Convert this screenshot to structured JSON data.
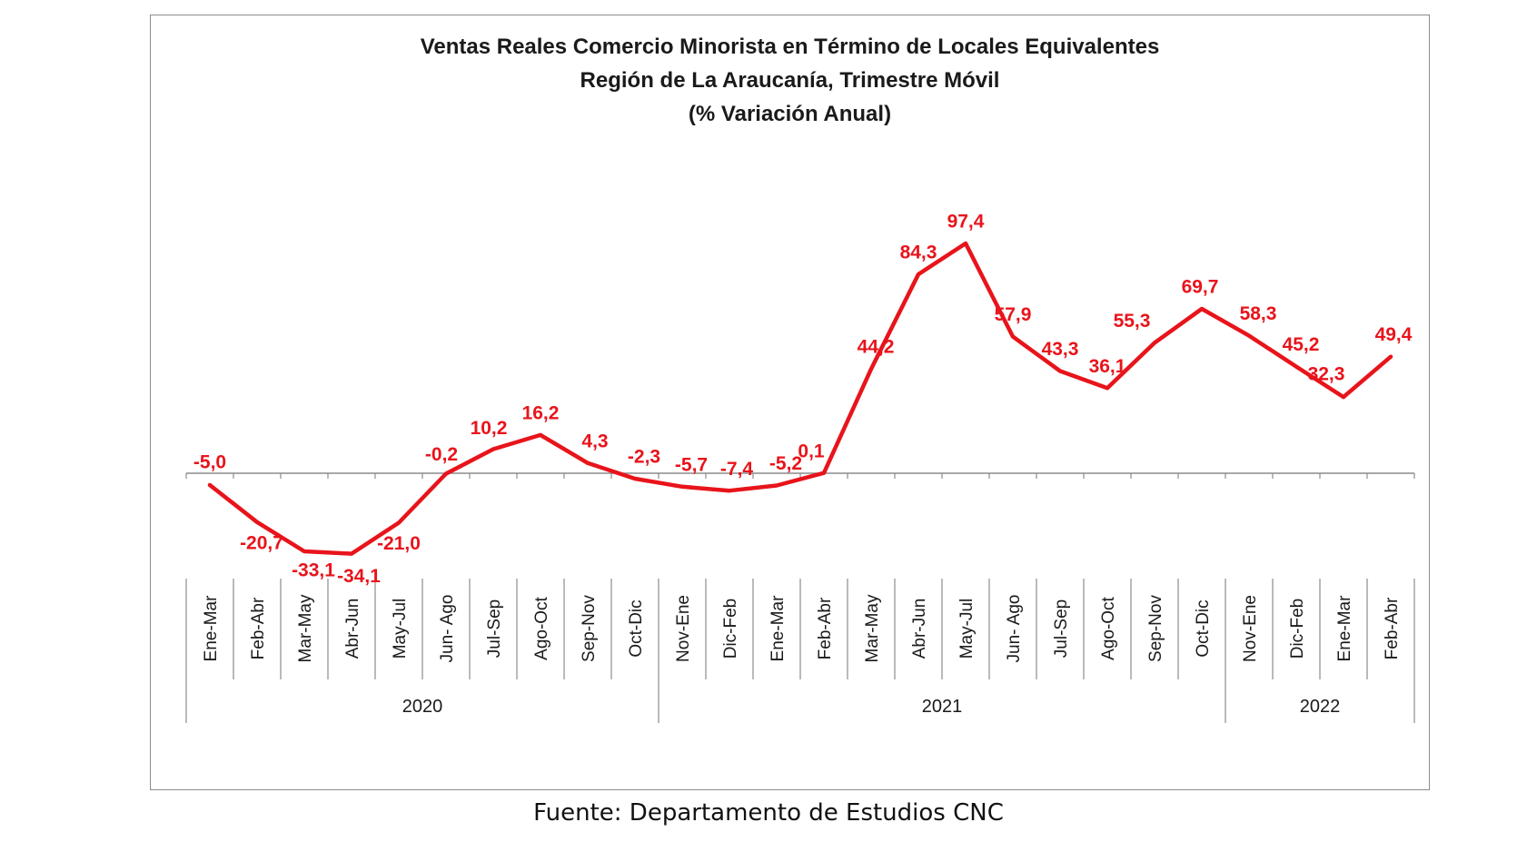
{
  "chart_data": {
    "type": "line",
    "title": "Ventas Reales Comercio Minorista  en Término de Locales Equivalentes",
    "subtitle": "Región de La Araucanía, Trimestre Móvil",
    "subtitle2": "(% Variación Anual)",
    "categories": [
      "Ene-Mar",
      "Feb-Abr",
      "Mar-May",
      "Abr-Jun",
      "May-Jul",
      "Jun- Ago",
      "Jul-Sep",
      "Ago-Oct",
      "Sep-Nov",
      "Oct-Dic",
      "Nov-Ene",
      "Dic-Feb",
      "Ene-Mar",
      "Feb-Abr",
      "Mar-May",
      "Abr-Jun",
      "May-Jul",
      "Jun- Ago",
      "Jul-Sep",
      "Ago-Oct",
      "Sep-Nov",
      "Oct-Dic",
      "Nov-Ene",
      "Dic-Feb",
      "Ene-Mar",
      "Feb-Abr"
    ],
    "years": [
      {
        "label": "2020",
        "start": 0,
        "end": 9
      },
      {
        "label": "2021",
        "start": 10,
        "end": 21
      },
      {
        "label": "2022",
        "start": 22,
        "end": 25
      }
    ],
    "series": [
      {
        "values": [
          -5.0,
          -20.7,
          -33.1,
          -34.1,
          -21.0,
          -0.2,
          10.2,
          16.2,
          4.3,
          -2.3,
          -5.7,
          -7.4,
          -5.2,
          0.1,
          44.2,
          84.3,
          97.4,
          57.9,
          43.3,
          36.1,
          55.3,
          69.7,
          58.3,
          45.2,
          32.3,
          49.4
        ],
        "labels": [
          "-5,0",
          "-20,7",
          "-33,1",
          "-34,1",
          "-21,0",
          "-0,2",
          "10,2",
          "16,2",
          "4,3",
          "-2,3",
          "-5,7",
          "-7,4",
          "-5,2",
          "0,1",
          "44,2",
          "84,3",
          "97,4",
          "57,9",
          "43,3",
          "36,1",
          "55,3",
          "69,7",
          "58,3",
          "45,2",
          "32,3",
          "49,4"
        ],
        "color": "#e8141b"
      }
    ],
    "grid": false,
    "legend": "none"
  },
  "source": "Fuente: Departamento de Estudios CNC"
}
